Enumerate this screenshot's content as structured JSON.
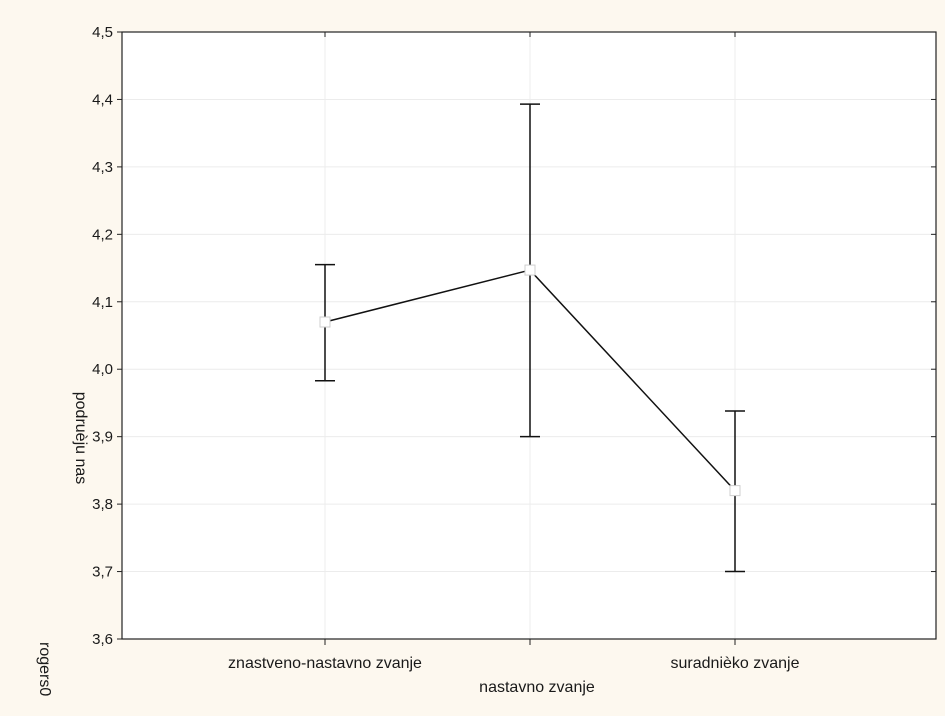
{
  "chart_data": {
    "type": "line",
    "title": "",
    "xlabel": "nastavno zvanje",
    "ylabel": "podruèju nas",
    "ylabel_secondary": "rogers0",
    "categories": [
      "znastveno-nastavno zvanje",
      "",
      "suradnièko zvanje"
    ],
    "series": [
      {
        "values": [
          4.07,
          4.147,
          3.82
        ],
        "error_low": [
          3.983,
          3.9,
          3.7
        ],
        "error_high": [
          4.155,
          4.393,
          3.938
        ]
      }
    ],
    "ylim": [
      3.6,
      4.5
    ],
    "yticks": [
      "3,6",
      "3,7",
      "3,8",
      "3,9",
      "4,0",
      "4,1",
      "4,2",
      "4,3",
      "4,4",
      "4,5"
    ],
    "grid": true,
    "legend": "none"
  },
  "style": {
    "background": "#fdf8ef",
    "plot_background": "#ffffff",
    "line_color": "#111111",
    "grid_color": "#ececec",
    "marker_fill": "#ffffff",
    "marker_stroke": "#cfcfcf"
  }
}
